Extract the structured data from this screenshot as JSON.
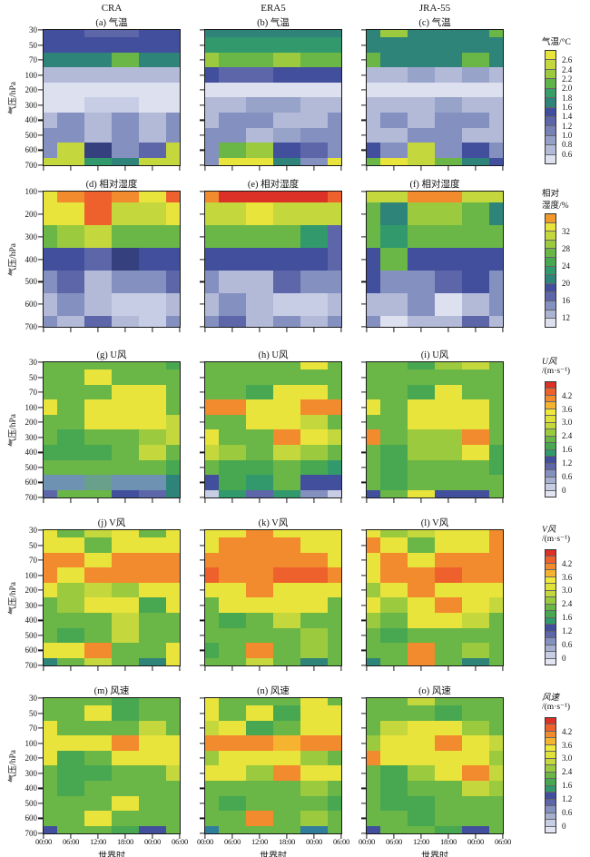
{
  "chart_data": {
    "type": "heatmap",
    "description": "5x3 grid of pressure-time heatmaps comparing CRA, ERA5 and JRA-55 reanalyses",
    "column_headers": [
      "CRA",
      "ERA5",
      "JRA-55"
    ],
    "x_categories": [
      "00:00",
      "06:00",
      "12:00",
      "18:00",
      "00:00",
      "06:00"
    ],
    "xlabel": "世界时",
    "ylabel": "气压/hPa",
    "grid_on": false,
    "palette": {
      "y": "#e9e43b",
      "yg": "#c4d83d",
      "gl": "#9cca3e",
      "g": "#6ab646",
      "gd": "#48a751",
      "tg": "#31996b",
      "t": "#2e8478",
      "o": "#f28a2e",
      "od": "#ee602c",
      "r": "#dc3127",
      "am": "#f6b32f",
      "nv": "#414f9c",
      "nvd": "#35407f",
      "bp": "#5c66a9",
      "bm": "#8490bf",
      "bml": "#98a3c9",
      "bl": "#b2bad8",
      "bll": "#c7cde4",
      "lv": "#dde0ef",
      "st": "#6e92b2",
      "sg": "#68a08c",
      "tb": "#2f7e9b"
    },
    "colorbars": {
      "temp": {
        "title_lines": [
          "气温/°C"
        ],
        "segments": [
          "#e9e43b",
          "#c4d83d",
          "#9cca3e",
          "#5eb44a",
          "#379e68",
          "#2e8478",
          "#414f9c",
          "#5c66a9",
          "#7682b5",
          "#95a0c8",
          "#b2bad8",
          "#dde0ef"
        ],
        "tick_labels": [
          "2.6",
          "2.4",
          "2.2",
          "2.0",
          "1.8",
          "1.6",
          "1.4",
          "1.2",
          "1.0",
          "0.8",
          "0.6"
        ],
        "ticks_every_segments": 1
      },
      "rh": {
        "title_lines": [
          "相对",
          "湿度/%"
        ],
        "segments": [
          "#f2992e",
          "#e9e43b",
          "#c4d83d",
          "#9cca3e",
          "#6ab646",
          "#48a751",
          "#31996b",
          "#2e8478",
          "#414f9c",
          "#5c66a9",
          "#8490bf",
          "#aab3d2",
          "#dde0ef"
        ],
        "tick_labels": [
          "32",
          "28",
          "24",
          "20",
          "16",
          "12"
        ],
        "ticks_every_segments": 2
      },
      "wind": {
        "title_lines": [
          "风",
          "/(m·s⁻¹)"
        ],
        "segments": [
          "#dc3127",
          "#ee602c",
          "#f28a2e",
          "#f6b32f",
          "#efe93c",
          "#dfe23b",
          "#c4d83d",
          "#9cca3e",
          "#6ab646",
          "#48a751",
          "#31996b",
          "#414f9c",
          "#5c66a9",
          "#8490bf",
          "#a6afd0",
          "#c7cde4",
          "#e2e4f1"
        ],
        "tick_labels": [
          "4.2",
          "3.6",
          "3.0",
          "2.4",
          "1.6",
          "1.2",
          "0.6",
          "0"
        ],
        "ticks_every_segments": 2
      }
    },
    "rows": [
      {
        "variable": "气温",
        "colorbar": "temp",
        "colorbar_title_lines": [
          "气温/°C"
        ],
        "y_ticks": [
          "30",
          "50",
          "70",
          "100",
          "200",
          "300",
          "400",
          "500",
          "600",
          "700"
        ],
        "panels": [
          {
            "title": "(a) 气温",
            "dataset": "CRA",
            "grid": [
              "nv nv bp bp nv nv",
              "nv nv nv nv nv nv",
              "t t t g t t",
              "bl bl bl bl bl bl",
              "lv lv lv lv lv lv",
              "lv lv bll bll lv lv",
              "bl bm bl bm bl bm",
              "bm bm bl bm bl bm",
              "bm yg nvd bm bp yg",
              "yg yg tg t yg yg"
            ]
          },
          {
            "title": "(b) 气温",
            "dataset": "ERA5",
            "grid": [
              "t t t t t t",
              "tg tg tg tg tg tg",
              "gl g g gl g g",
              "nv bp bp nv nv nv",
              "lv lv lv lv lv lv",
              "bl bl bml bml bl bl",
              "bl bm bm bl bl bm",
              "bm bm bl bml bm bm",
              "bm g gl nv bp bm",
              "bm y y t bm y"
            ]
          },
          {
            "title": "(c) 气温",
            "dataset": "JRA-55",
            "grid": [
              "t gl t t t g",
              "t t t t t t",
              "g t t t g t",
              "bl bl bml bl bml bl",
              "lv lv lv lv lv lv",
              "bl bl bl bml bl bl",
              "bl bm bl bm bm bl",
              "bl bl bm bm bl bl",
              "nv bm yg bm nv bm",
              "g y yg g t nv"
            ]
          }
        ]
      },
      {
        "variable": "相对湿度",
        "colorbar": "rh",
        "colorbar_title_lines": [
          "相对",
          "湿度/%"
        ],
        "y_ticks": [
          "100",
          "200",
          "300",
          "400",
          "500",
          "600",
          "700"
        ],
        "panels": [
          {
            "title": "(d) 相对湿度",
            "dataset": "CRA",
            "grid": [
              "y o od o y od",
              "y y od yg yg y",
              "g gl yg g g g",
              "nv nv bp nvd nv nv",
              "bm bp bl bm bm bp",
              "bl bm bl bll bll bl",
              "bm bl bp bl bll bm"
            ]
          },
          {
            "title": "(e) 相对湿度",
            "dataset": "ERA5",
            "grid": [
              "o r r r r od",
              "yg yg y yg yg yg",
              "g g g g tg bp",
              "nv nv nv nv nv bp",
              "bm bl bl bp bm bm",
              "bl bm bl bll bll bl",
              "bm bp bl bm bl bm"
            ]
          },
          {
            "title": "(f) 相对湿度",
            "dataset": "JRA-55",
            "grid": [
              "yg yg o o yg yg",
              "g t gl gl g t",
              "g tg g g g g",
              "nv g nv nv nv nv",
              "nv bm bm bp nv bm",
              "bl bl bm lv bl bm",
              "bm lv bl bl bp bl"
            ]
          }
        ]
      },
      {
        "variable": "U风",
        "colorbar": "wind",
        "colorbar_title_lines": [
          "U风",
          "/(m·s⁻¹)"
        ],
        "y_ticks": [
          "30",
          "50",
          "70",
          "100",
          "200",
          "300",
          "400",
          "500",
          "600",
          "700"
        ],
        "panels": [
          {
            "title": "(g) U风",
            "dataset": "CRA",
            "grid": [
              "g g g g g gd",
              "g g y g g g",
              "g g g y y g",
              "y g y y y g",
              "g g y y y yg",
              "g gd g g gl yg",
              "gd gd gd g yg g",
              "g g g g g gd",
              "st st sg st st t",
              "bp g g nv bp t"
            ]
          },
          {
            "title": "(h) U风",
            "dataset": "ERA5",
            "grid": [
              "g g g g y g",
              "g g g g g g",
              "g g gd y y g",
              "o o y y o o",
              "g g y y yg g",
              "y g g o y yg",
              "yg gl g yg gl g",
              "g gd gd g gd tg",
              "nv gd tg g nv nv",
              "bll tg bp tg bm bll"
            ]
          },
          {
            "title": "(i) U风",
            "dataset": "JRA-55",
            "grid": [
              "g g gd gl yg g",
              "g g g g g g",
              "g g gd y g g",
              "y g y y y g",
              "g g y y y g",
              "o g gl gl o g",
              "g gd gl gl y gd",
              "g gd g g g gd",
              "g gd g g g g",
              "nv g y nv nv g"
            ]
          }
        ]
      },
      {
        "variable": "V风",
        "colorbar": "wind",
        "colorbar_title_lines": [
          "V风",
          "/(m·s⁻¹)"
        ],
        "y_ticks": [
          "30",
          "50",
          "70",
          "100",
          "200",
          "300",
          "400",
          "500",
          "600",
          "700"
        ],
        "panels": [
          {
            "title": "(j) V风",
            "dataset": "CRA",
            "grid": [
              "y g yg y g y",
              "y y g y y y",
              "o o y o o o",
              "o y o o o o",
              "y gl yg gl y y",
              "g gl y y gd y",
              "g g g yg g g",
              "g gd g yg g g",
              "y y o g g y",
              "t g yg g t y"
            ]
          },
          {
            "title": "(k) V风",
            "dataset": "ERA5",
            "grid": [
              "y y o y y y",
              "y o o o y y",
              "o o o o o y",
              "od o o od od o",
              "y y o y y y",
              "g y y y y g",
              "g gd g yg g g",
              "g g g g gl g",
              "gd g o g gl g",
              "g g yg g t g"
            ]
          },
          {
            "title": "(l) V风",
            "dataset": "JRA-55",
            "grid": [
              "y gl yg y y o",
              "o y g y y o",
              "y o y o o o",
              "y o o od o o",
              "gl y o y y y",
              "y gl y o y yg",
              "gl g y y yg g",
              "g gd g g g g",
              "g g o g gl g",
              "t g o g t g"
            ]
          }
        ]
      },
      {
        "variable": "风速",
        "colorbar": "wind",
        "colorbar_title_lines": [
          "风速",
          "/(m·s⁻¹)"
        ],
        "y_ticks": [
          "30",
          "50",
          "70",
          "100",
          "200",
          "300",
          "400",
          "500",
          "600",
          "700"
        ],
        "x_tick_labels": [
          "00:00",
          "06:00",
          "12:00",
          "18:00",
          "00:00",
          "06:00"
        ],
        "xlabel": "世界时",
        "panels": [
          {
            "title": "(m) 风速",
            "dataset": "CRA",
            "grid": [
              "g g g gd g g",
              "g g y gd g g",
              "y g g g yg g",
              "y y y o y y",
              "y gd g y y y",
              "g gd gd g g yg",
              "g gd g g g g",
              "g g g y g g",
              "g g y g g g",
              "nv g g gd nv g"
            ]
          },
          {
            "title": "(n) 风速",
            "dataset": "ERA5",
            "grid": [
              "y g g g y g",
              "y g y gd y y",
              "yg y gd g y y",
              "o o o am o o",
              "gl y y y gl g",
              "y y gl o y y",
              "g g g g gl g",
              "g gd g g g gd",
              "g g o g gl g",
              "tb g g g tb g"
            ]
          },
          {
            "title": "(o) 风速",
            "dataset": "JRA-55",
            "grid": [
              "g g yg g g g",
              "g g g gd g g",
              "g yg y y gl g",
              "gl y y o y yg",
              "o y y y y gl",
              "g gd gl y o yg",
              "g gd g g yg gl",
              "g gd gd g g g",
              "g g gd g g g",
              "nv g g gd nv g"
            ]
          }
        ]
      }
    ]
  }
}
